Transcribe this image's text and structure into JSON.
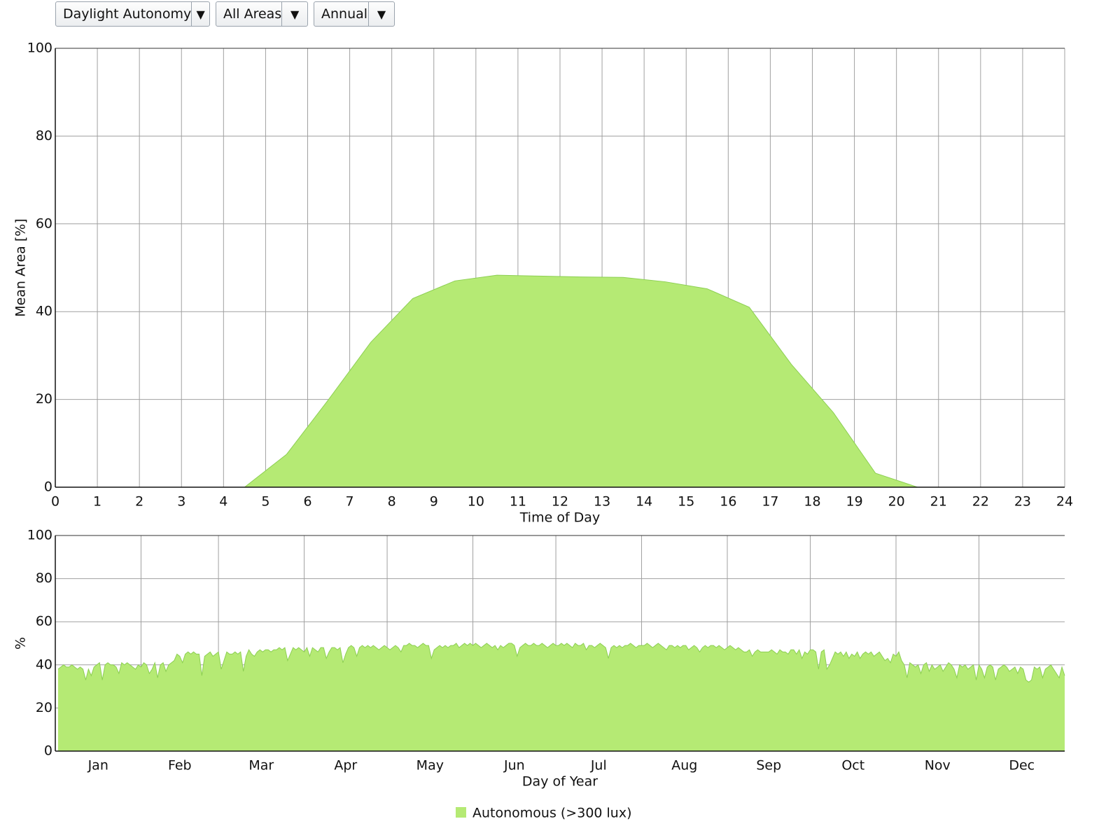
{
  "controls": {
    "dropdowns": [
      "Daylight Autonomy",
      "All Areas",
      "Annual"
    ]
  },
  "chart_data": [
    {
      "type": "area",
      "x": [
        0.5,
        1.5,
        2.5,
        3.5,
        4.5,
        5.5,
        6.5,
        7.5,
        8.5,
        9.5,
        10.5,
        11.5,
        12.5,
        13.5,
        14.5,
        15.5,
        16.5,
        17.5,
        18.5,
        19.5,
        20.5,
        21.5,
        22.5,
        23.5
      ],
      "series": [
        {
          "name": "Autonomous (>300 lux)",
          "color": "#b5ea74",
          "values": [
            0,
            0,
            0,
            0,
            0,
            7.5,
            20,
            33,
            43,
            47,
            48.3,
            48.1,
            47.9,
            47.8,
            46.8,
            45.2,
            41,
            28,
            17,
            3.2,
            0,
            0,
            0,
            0
          ]
        }
      ],
      "xlim": [
        0,
        24
      ],
      "xticks": [
        0,
        1,
        2,
        3,
        4,
        5,
        6,
        7,
        8,
        9,
        10,
        11,
        12,
        13,
        14,
        15,
        16,
        17,
        18,
        19,
        20,
        21,
        22,
        23,
        24
      ],
      "ylim": [
        0,
        100
      ],
      "yticks": [
        0,
        20,
        40,
        60,
        80,
        100
      ],
      "xlabel": "Time of Day",
      "ylabel": "Mean Area [%]",
      "grid": true,
      "legend": "bottom"
    },
    {
      "type": "area",
      "x": [
        1,
        2,
        3,
        4,
        5,
        6,
        7,
        8,
        9,
        10,
        11,
        12,
        13,
        14,
        15,
        16,
        17,
        18,
        19,
        20,
        21,
        22,
        23,
        24,
        25,
        26,
        27,
        28,
        29,
        30,
        31,
        32,
        33,
        34,
        35,
        36,
        37,
        38,
        39,
        40,
        41,
        42,
        43,
        44,
        45,
        46,
        47,
        48,
        49,
        50,
        51,
        52,
        53,
        54,
        55,
        56,
        57,
        58,
        59,
        60,
        61,
        62,
        63,
        64,
        65,
        66,
        67,
        68,
        69,
        70,
        71,
        72,
        73,
        74,
        75,
        76,
        77,
        78,
        79,
        80,
        81,
        82,
        83,
        84,
        85,
        86,
        87,
        88,
        89,
        90,
        91,
        92,
        93,
        94,
        95,
        96,
        97,
        98,
        99,
        100,
        101,
        102,
        103,
        104,
        105,
        106,
        107,
        108,
        109,
        110,
        111,
        112,
        113,
        114,
        115,
        116,
        117,
        118,
        119,
        120,
        121,
        122,
        123,
        124,
        125,
        126,
        127,
        128,
        129,
        130,
        131,
        132,
        133,
        134,
        135,
        136,
        137,
        138,
        139,
        140,
        141,
        142,
        143,
        144,
        145,
        146,
        147,
        148,
        149,
        150,
        151,
        152,
        153,
        154,
        155,
        156,
        157,
        158,
        159,
        160,
        161,
        162,
        163,
        164,
        165,
        166,
        167,
        168,
        169,
        170,
        171,
        172,
        173,
        174,
        175,
        176,
        177,
        178,
        179,
        180,
        181,
        182,
        183,
        184,
        185,
        186,
        187,
        188,
        189,
        190,
        191,
        192,
        193,
        194,
        195,
        196,
        197,
        198,
        199,
        200,
        201,
        202,
        203,
        204,
        205,
        206,
        207,
        208,
        209,
        210,
        211,
        212,
        213,
        214,
        215,
        216,
        217,
        218,
        219,
        220,
        221,
        222,
        223,
        224,
        225,
        226,
        227,
        228,
        229,
        230,
        231,
        232,
        233,
        234,
        235,
        236,
        237,
        238,
        239,
        240,
        241,
        242,
        243,
        244,
        245,
        246,
        247,
        248,
        249,
        250,
        251,
        252,
        253,
        254,
        255,
        256,
        257,
        258,
        259,
        260,
        261,
        262,
        263,
        264,
        265,
        266,
        267,
        268,
        269,
        270,
        271,
        272,
        273,
        274,
        275,
        276,
        277,
        278,
        279,
        280,
        281,
        282,
        283,
        284,
        285,
        286,
        287,
        288,
        289,
        290,
        291,
        292,
        293,
        294,
        295,
        296,
        297,
        298,
        299,
        300,
        301,
        302,
        303,
        304,
        305,
        306,
        307,
        308,
        309,
        310,
        311,
        312,
        313,
        314,
        315,
        316,
        317,
        318,
        319,
        320,
        321,
        322,
        323,
        324,
        325,
        326,
        327,
        328,
        329,
        330,
        331,
        332,
        333,
        334,
        335,
        336,
        337,
        338,
        339,
        340,
        341,
        342,
        343,
        344,
        345,
        346,
        347,
        348,
        349,
        350,
        351,
        352,
        353,
        354,
        355,
        356,
        357,
        358,
        359,
        360,
        361,
        362,
        363,
        364,
        365
      ],
      "series": [
        {
          "color": "#b5ea74",
          "values": [
            38,
            39,
            40,
            39,
            39,
            40,
            39,
            38,
            39,
            38,
            33,
            38,
            35,
            39,
            40,
            41,
            33,
            40,
            41,
            40,
            40,
            39,
            36,
            41,
            40,
            41,
            40,
            39,
            38,
            40,
            39,
            41,
            40,
            36,
            38,
            41,
            34,
            40,
            41,
            37,
            40,
            41,
            42,
            45,
            44,
            41,
            45,
            46,
            45,
            46,
            45,
            45,
            35,
            44,
            45,
            46,
            44,
            45,
            46,
            38,
            42,
            46,
            45,
            45,
            46,
            45,
            46,
            37,
            44,
            47,
            45,
            44,
            46,
            47,
            46,
            47,
            47,
            46,
            47,
            47,
            48,
            47,
            48,
            42,
            45,
            48,
            47,
            48,
            47,
            46,
            48,
            44,
            48,
            47,
            46,
            48,
            48,
            43,
            46,
            48,
            48,
            47,
            48,
            41,
            45,
            48,
            49,
            48,
            44,
            48,
            49,
            48,
            49,
            48,
            49,
            48,
            47,
            48,
            49,
            48,
            47,
            48,
            49,
            48,
            46,
            49,
            49,
            50,
            49,
            49,
            48,
            49,
            50,
            49,
            49,
            43,
            47,
            48,
            49,
            48,
            49,
            48,
            49,
            49,
            50,
            48,
            49,
            50,
            49,
            50,
            49,
            50,
            49,
            48,
            49,
            50,
            49,
            48,
            49,
            47,
            49,
            48,
            49,
            50,
            50,
            49,
            44,
            48,
            49,
            50,
            49,
            49,
            50,
            49,
            49,
            50,
            49,
            48,
            49,
            50,
            49,
            49,
            50,
            49,
            50,
            49,
            48,
            50,
            49,
            49,
            50,
            47,
            49,
            49,
            48,
            49,
            50,
            49,
            48,
            43,
            48,
            49,
            48,
            49,
            48,
            49,
            49,
            50,
            49,
            48,
            49,
            49,
            49,
            50,
            49,
            48,
            49,
            50,
            49,
            48,
            47,
            49,
            49,
            48,
            49,
            48,
            49,
            49,
            47,
            48,
            49,
            48,
            46,
            48,
            49,
            48,
            49,
            49,
            48,
            49,
            48,
            47,
            48,
            49,
            48,
            47,
            48,
            47,
            46,
            46,
            47,
            44,
            46,
            47,
            46,
            46,
            46,
            46,
            47,
            46,
            45,
            47,
            46,
            46,
            45,
            47,
            47,
            45,
            47,
            43,
            46,
            45,
            47,
            47,
            46,
            38,
            46,
            47,
            38,
            40,
            43,
            46,
            45,
            46,
            44,
            46,
            43,
            45,
            44,
            46,
            43,
            45,
            46,
            45,
            46,
            44,
            45,
            46,
            44,
            42,
            43,
            41,
            45,
            44,
            46,
            42,
            40,
            34,
            41,
            40,
            39,
            40,
            36,
            40,
            41,
            37,
            40,
            38,
            39,
            40,
            37,
            39,
            41,
            40,
            38,
            34,
            40,
            39,
            40,
            38,
            39,
            40,
            33,
            40,
            38,
            34,
            39,
            40,
            39,
            33,
            38,
            39,
            40,
            39,
            37,
            38,
            39,
            36,
            39,
            38,
            33,
            32,
            33,
            39,
            38,
            39,
            34,
            38,
            39,
            40,
            38,
            36,
            34,
            39,
            35
          ]
        }
      ],
      "xlim": [
        0,
        365
      ],
      "xticks": [
        {
          "value": 15.5,
          "label": "Jan"
        },
        {
          "value": 45,
          "label": "Feb"
        },
        {
          "value": 74.5,
          "label": "Mar"
        },
        {
          "value": 105,
          "label": "Apr"
        },
        {
          "value": 135.5,
          "label": "May"
        },
        {
          "value": 166,
          "label": "Jun"
        },
        {
          "value": 196.5,
          "label": "Jul"
        },
        {
          "value": 227.5,
          "label": "Aug"
        },
        {
          "value": 258,
          "label": "Sep"
        },
        {
          "value": 288.5,
          "label": "Oct"
        },
        {
          "value": 319,
          "label": "Nov"
        },
        {
          "value": 349.5,
          "label": "Dec"
        }
      ],
      "xgrid": [
        31,
        59,
        90,
        120,
        151,
        181,
        212,
        243,
        273,
        304,
        334
      ],
      "ylim": [
        0,
        100
      ],
      "yticks": [
        0,
        20,
        40,
        60,
        80,
        100
      ],
      "xlabel": "Day of Year",
      "ylabel": "%",
      "grid": true
    }
  ]
}
